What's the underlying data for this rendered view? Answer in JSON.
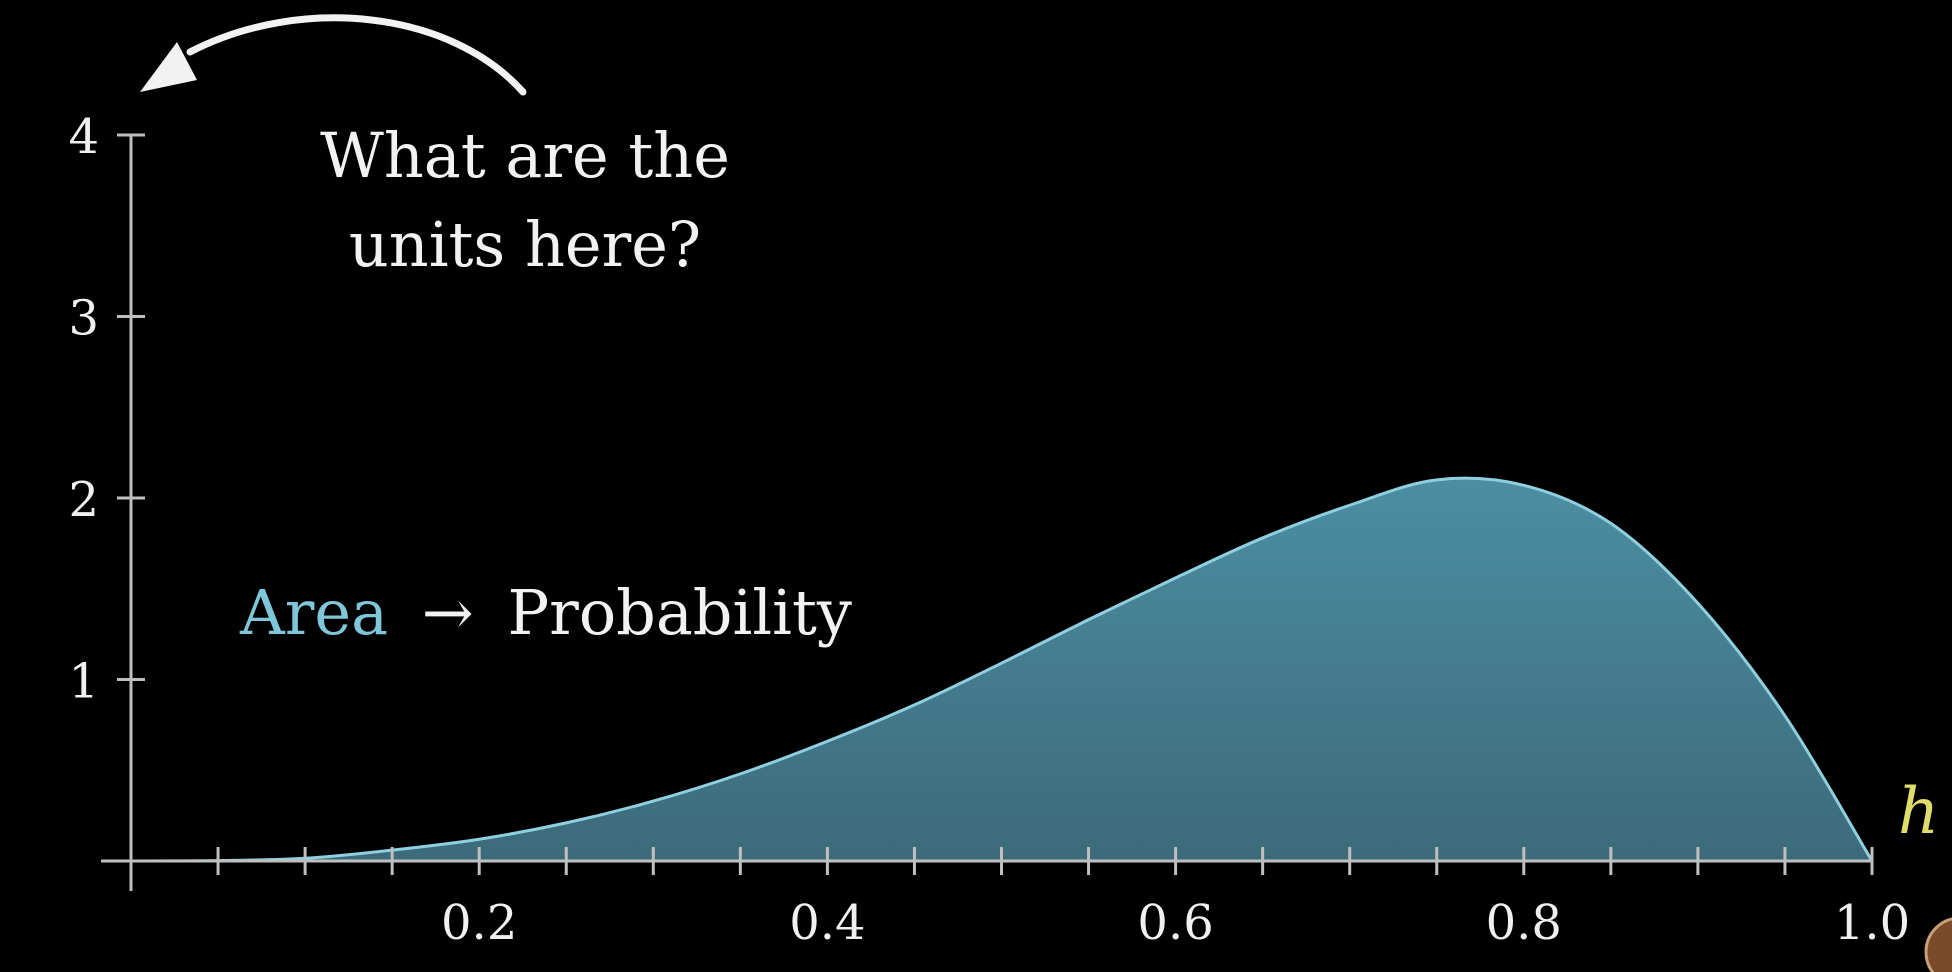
{
  "annotations": {
    "question_line1": "What are the",
    "question_line2": "units here?",
    "area_word": "Area",
    "arrow_symbol": "→",
    "probability_word": "Probability"
  },
  "colors": {
    "background": "#000000",
    "axis": "#bfbfbf",
    "tick_label": "#f0f0f0",
    "curve_stroke": "#8fd0e0",
    "area_fill_top": "#4c8ea2",
    "area_fill_bottom": "#3c6a7a",
    "area_text": "#7fc6d8",
    "variable_label": "#e0dc6a",
    "question_text": "#f2f2f2"
  },
  "chart_data": {
    "type": "area",
    "xlabel": "h",
    "ylabel": "",
    "xlim": [
      0,
      1.0
    ],
    "ylim": [
      0,
      4
    ],
    "x_ticks": [
      0.2,
      0.4,
      0.6,
      0.8,
      1.0
    ],
    "x_tick_labels": [
      "0.2",
      "0.4",
      "0.6",
      "0.8",
      "1.0"
    ],
    "x_minor_step": 0.05,
    "y_ticks": [
      1,
      2,
      3,
      4
    ],
    "y_tick_labels": [
      "1",
      "2",
      "3",
      "4"
    ],
    "grid": false,
    "legend": "none",
    "series": [
      {
        "x": [
          0.0,
          0.05,
          0.1,
          0.15,
          0.2,
          0.25,
          0.3,
          0.35,
          0.4,
          0.45,
          0.5,
          0.55,
          0.6,
          0.65,
          0.7,
          0.75,
          0.8,
          0.85,
          0.9,
          0.95,
          1.0
        ],
        "y": [
          0.0,
          0.002,
          0.015,
          0.06,
          0.12,
          0.21,
          0.33,
          0.48,
          0.66,
          0.86,
          1.09,
          1.33,
          1.56,
          1.78,
          1.96,
          2.1,
          2.07,
          1.86,
          1.42,
          0.8,
          0.0
        ]
      }
    ]
  }
}
